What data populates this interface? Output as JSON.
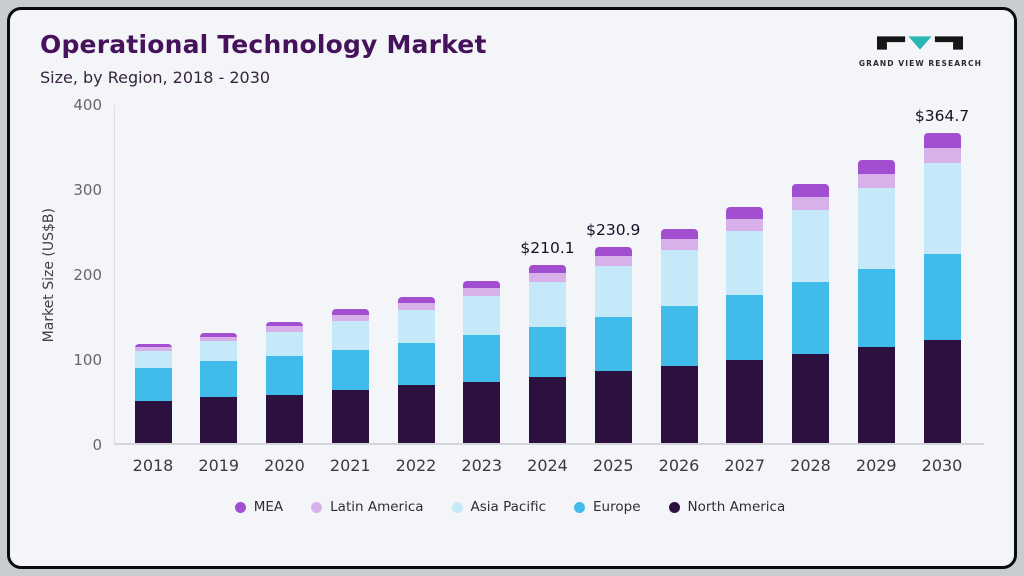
{
  "header": {
    "title": "Operational Technology Market",
    "subtitle": "Size, by Region, 2018 - 2030",
    "logo_text": "GRAND VIEW RESEARCH"
  },
  "colors": {
    "title": "#46125c",
    "card_background": "#f4f5f8",
    "card_border": "#0c0c0e",
    "logo_teal": "#2ab7b3",
    "annotation_text": "#141126"
  },
  "chart_data": {
    "type": "bar",
    "stacked": true,
    "title": "Operational Technology Market",
    "subtitle": "Size, by Region, 2018 - 2030",
    "xlabel": "",
    "ylabel": "Market Size (US$B)",
    "ylim": [
      0,
      400
    ],
    "yticks": [
      0,
      100,
      200,
      300,
      400
    ],
    "grid": false,
    "legend_position": "bottom",
    "categories": [
      "2018",
      "2019",
      "2020",
      "2021",
      "2022",
      "2023",
      "2024",
      "2025",
      "2026",
      "2027",
      "2028",
      "2029",
      "2030"
    ],
    "series": [
      {
        "name": "North America",
        "color": "#2c1140",
        "values": [
          50,
          54,
          57,
          62,
          68,
          72,
          78,
          85,
          91,
          98,
          105,
          113,
          121
        ]
      },
      {
        "name": "Europe",
        "color": "#41bbe9",
        "values": [
          38,
          42,
          45,
          48,
          50,
          55,
          59,
          63,
          70,
          76,
          84,
          92,
          101
        ]
      },
      {
        "name": "Asia Pacific",
        "color": "#c6e9f9",
        "values": [
          20,
          24,
          29,
          34,
          39,
          46,
          53,
          60,
          66,
          75,
          85,
          95,
          107
        ]
      },
      {
        "name": "Latin America",
        "color": "#d8b0ea",
        "values": [
          4.5,
          5.3,
          6.4,
          7,
          8,
          9,
          10.5,
          11.6,
          13,
          14.5,
          15.5,
          16.5,
          18
        ]
      },
      {
        "name": "MEA",
        "color": "#a14fd0",
        "values": [
          3.7,
          4.7,
          5.6,
          6.3,
          7.1,
          8.6,
          9.6,
          11.3,
          12.4,
          13.7,
          14.9,
          16.2,
          17.7
        ]
      }
    ],
    "totals": [
      116.2,
      130.0,
      143.0,
      157.3,
      172.1,
      190.6,
      210.1,
      230.9,
      252.4,
      277.2,
      304.4,
      332.7,
      364.7
    ],
    "annotations": [
      {
        "category": "2024",
        "label": "$210.1"
      },
      {
        "category": "2025",
        "label": "$230.9"
      },
      {
        "category": "2030",
        "label": "$364.7"
      }
    ],
    "legend_order": [
      "MEA",
      "Latin America",
      "Asia Pacific",
      "Europe",
      "North America"
    ]
  }
}
